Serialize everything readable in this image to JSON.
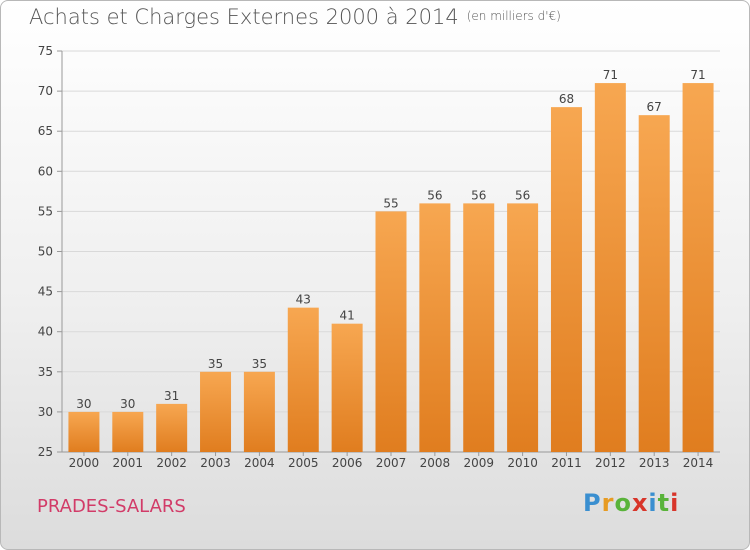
{
  "header": {
    "title": "Achats et Charges Externes 2000 à 2014",
    "subtitle": "(en milliers d'€)"
  },
  "footer": {
    "place": "PRADES-SALARS",
    "brand_letters": [
      "P",
      "r",
      "o",
      "x",
      "i",
      "t",
      "i"
    ]
  },
  "colors": {
    "bar_top": "#f7a751",
    "bar_bottom": "#e07d1f",
    "title": "#555555",
    "place": "#d23b68"
  },
  "chart_data": {
    "type": "bar",
    "title": "Achats et Charges Externes 2000 à 2014",
    "subtitle": "(en milliers d'€)",
    "xlabel": "",
    "ylabel": "",
    "categories": [
      "2000",
      "2001",
      "2002",
      "2003",
      "2004",
      "2005",
      "2006",
      "2007",
      "2008",
      "2009",
      "2010",
      "2011",
      "2012",
      "2013",
      "2014"
    ],
    "values": [
      30,
      30,
      31,
      35,
      35,
      43,
      41,
      55,
      56,
      56,
      56,
      68,
      71,
      67,
      71
    ],
    "ylim": [
      25,
      75
    ],
    "yticks": [
      25,
      30,
      35,
      40,
      45,
      50,
      55,
      60,
      65,
      70,
      75
    ],
    "grid": true,
    "legend": "none"
  }
}
